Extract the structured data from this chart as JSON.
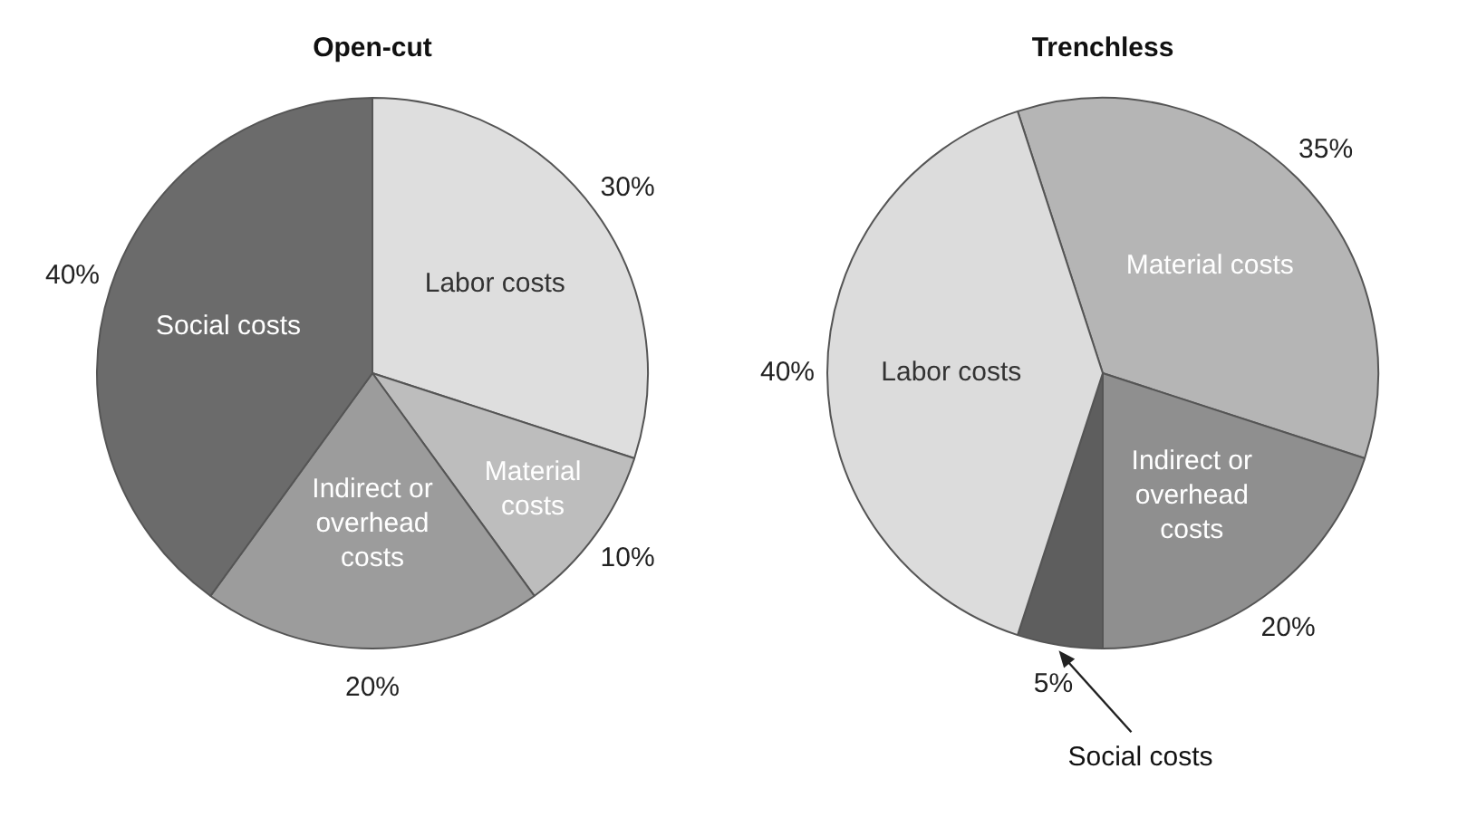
{
  "chart_data": [
    {
      "type": "pie",
      "title": "Open-cut",
      "categories": [
        "Labor costs",
        "Material costs",
        "Indirect or overhead costs",
        "Social costs"
      ],
      "values": [
        30,
        10,
        20,
        40
      ],
      "value_labels": [
        "30%",
        "10%",
        "20%",
        "40%"
      ],
      "colors": [
        "#dedede",
        "#bdbdbd",
        "#9c9c9c",
        "#6b6b6b"
      ],
      "legend": false
    },
    {
      "type": "pie",
      "title": "Trenchless",
      "categories": [
        "Material costs",
        "Indirect or overhead costs",
        "Social costs",
        "Labor costs"
      ],
      "values": [
        35,
        20,
        5,
        40
      ],
      "value_labels": [
        "35%",
        "20%",
        "5%",
        "40%"
      ],
      "colors": [
        "#b5b5b5",
        "#8f8f8f",
        "#5e5e5e",
        "#dcdcdc"
      ],
      "legend": false
    }
  ]
}
